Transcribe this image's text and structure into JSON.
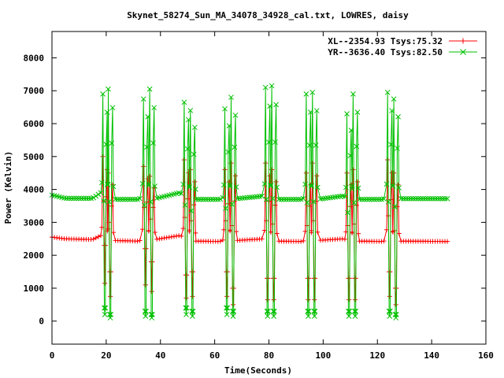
{
  "chart_data": {
    "type": "line",
    "title": "Skynet_58274_Sun_MA_34078_34928_cal.txt, LOWRES, daisy",
    "xlabel": "Time(Seconds)",
    "ylabel": "Power (Kelvin)",
    "xlim": [
      0,
      160
    ],
    "ylim": [
      -700,
      8800
    ],
    "xticks": [
      0,
      20,
      40,
      60,
      80,
      100,
      120,
      140,
      160
    ],
    "yticks": [
      0,
      1000,
      2000,
      3000,
      4000,
      5000,
      6000,
      7000,
      8000
    ],
    "grid": false,
    "legend_position": "top-right",
    "series": [
      {
        "name": "XL--2354.93 Tsys:75.32",
        "color": "#ff0000",
        "marker": "plus",
        "baseline": [
          [
            0,
            2550
          ],
          [
            5,
            2500
          ],
          [
            15,
            2480
          ],
          [
            18,
            2600
          ],
          [
            23,
            2450
          ],
          [
            32,
            2430
          ],
          [
            35,
            2550
          ],
          [
            38,
            2480
          ],
          [
            47,
            2600
          ],
          [
            53,
            2430
          ],
          [
            62,
            2420
          ],
          [
            65,
            2550
          ],
          [
            68,
            2450
          ],
          [
            78,
            2500
          ],
          [
            83,
            2430
          ],
          [
            92,
            2420
          ],
          [
            95,
            2500
          ],
          [
            98,
            2450
          ],
          [
            107,
            2500
          ],
          [
            113,
            2430
          ],
          [
            122,
            2420
          ],
          [
            125,
            2500
          ],
          [
            128,
            2430
          ],
          [
            146,
            2420
          ]
        ],
        "peaks": [
          {
            "t": 19.5,
            "low": 2300,
            "high": 5000
          },
          {
            "t": 21.5,
            "low": 1500,
            "high": 4500
          },
          {
            "t": 34.5,
            "low": 2200,
            "high": 4700
          },
          {
            "t": 36.8,
            "low": 1800,
            "high": 4400
          },
          {
            "t": 49.5,
            "low": 1400,
            "high": 4900
          },
          {
            "t": 51.8,
            "low": 1500,
            "high": 4600
          },
          {
            "t": 64.5,
            "low": 1500,
            "high": 4600
          },
          {
            "t": 66.8,
            "low": 1000,
            "high": 4800
          },
          {
            "t": 79.5,
            "low": 1300,
            "high": 4800
          },
          {
            "t": 81.8,
            "low": 1300,
            "high": 4600
          },
          {
            "t": 94.5,
            "low": 1300,
            "high": 4500
          },
          {
            "t": 96.8,
            "low": 1300,
            "high": 4800
          },
          {
            "t": 109.5,
            "low": 1300,
            "high": 4500
          },
          {
            "t": 111.8,
            "low": 1300,
            "high": 4600
          },
          {
            "t": 124.5,
            "low": 1500,
            "high": 4900
          },
          {
            "t": 126.8,
            "low": 1000,
            "high": 4500
          }
        ]
      },
      {
        "name": "YR--3636.40 Tsys:82.50",
        "color": "#00c000",
        "marker": "cross",
        "baseline": [
          [
            0,
            3830
          ],
          [
            5,
            3730
          ],
          [
            15,
            3730
          ],
          [
            18,
            3900
          ],
          [
            23,
            3700
          ],
          [
            32,
            3700
          ],
          [
            35,
            3850
          ],
          [
            38,
            3720
          ],
          [
            47,
            3900
          ],
          [
            53,
            3700
          ],
          [
            62,
            3700
          ],
          [
            65,
            3850
          ],
          [
            68,
            3720
          ],
          [
            78,
            3800
          ],
          [
            83,
            3700
          ],
          [
            92,
            3700
          ],
          [
            95,
            3800
          ],
          [
            98,
            3700
          ],
          [
            107,
            3800
          ],
          [
            113,
            3700
          ],
          [
            122,
            3700
          ],
          [
            125,
            3800
          ],
          [
            128,
            3720
          ],
          [
            146,
            3720
          ]
        ],
        "peaks": [
          {
            "t": 19.5,
            "low": 400,
            "high": 6900
          },
          {
            "t": 21.5,
            "low": 200,
            "high": 7050
          },
          {
            "t": 34.5,
            "low": 300,
            "high": 6750
          },
          {
            "t": 36.8,
            "low": 200,
            "high": 7050
          },
          {
            "t": 49.5,
            "low": 400,
            "high": 6650
          },
          {
            "t": 51.8,
            "low": 300,
            "high": 6400
          },
          {
            "t": 64.5,
            "low": 400,
            "high": 6450
          },
          {
            "t": 66.8,
            "low": 300,
            "high": 6800
          },
          {
            "t": 79.5,
            "low": 300,
            "high": 7100
          },
          {
            "t": 81.8,
            "low": 300,
            "high": 7150
          },
          {
            "t": 94.5,
            "low": 300,
            "high": 6900
          },
          {
            "t": 96.8,
            "low": 300,
            "high": 6950
          },
          {
            "t": 109.5,
            "low": 300,
            "high": 6300
          },
          {
            "t": 111.8,
            "low": 300,
            "high": 6900
          },
          {
            "t": 124.5,
            "low": 300,
            "high": 6950
          },
          {
            "t": 126.8,
            "low": 200,
            "high": 6750
          }
        ]
      }
    ]
  }
}
